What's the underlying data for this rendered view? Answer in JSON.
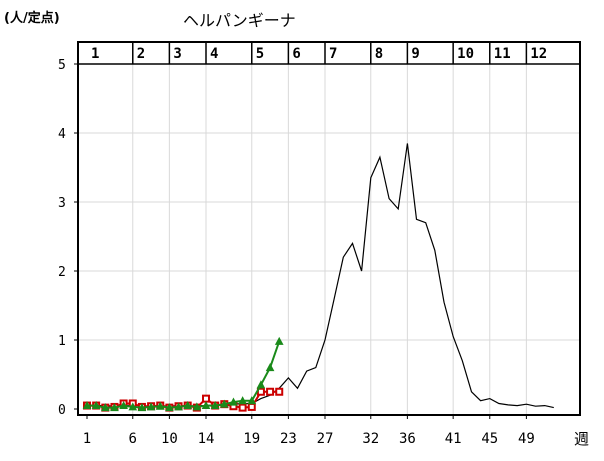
{
  "chart_data": {
    "type": "line",
    "title": "ヘルパンギーナ",
    "ylabel": "(人/定点)",
    "xlabel": "週",
    "ylim": [
      0,
      5
    ],
    "xlim": [
      1,
      53
    ],
    "yticks": [
      0,
      1,
      2,
      3,
      4,
      5
    ],
    "xticks": [
      1,
      6,
      10,
      14,
      19,
      23,
      27,
      32,
      36,
      41,
      45,
      49
    ],
    "month_labels": [
      "1",
      "2",
      "3",
      "4",
      "5",
      "6",
      "7",
      "8",
      "9",
      "10",
      "11",
      "12"
    ],
    "month_start_weeks": [
      1,
      6,
      10,
      14,
      19,
      23,
      27,
      32,
      36,
      41,
      45,
      49
    ],
    "grid": true,
    "series": [
      {
        "color": "#000000",
        "marker": "none",
        "x": [
          1,
          2,
          3,
          4,
          5,
          6,
          7,
          8,
          9,
          10,
          11,
          12,
          13,
          14,
          15,
          16,
          17,
          18,
          19,
          20,
          21,
          22,
          23,
          24,
          25,
          26,
          27,
          28,
          29,
          30,
          31,
          32,
          33,
          34,
          35,
          36,
          37,
          38,
          39,
          40,
          41,
          42,
          43,
          44,
          45,
          46,
          47,
          48,
          49,
          50,
          51,
          52
        ],
        "y": [
          0.05,
          0.05,
          0.05,
          0.04,
          0.04,
          0.06,
          0.05,
          0.04,
          0.05,
          0.04,
          0.05,
          0.04,
          0.05,
          0.05,
          0.06,
          0.05,
          0.07,
          0.08,
          0.08,
          0.15,
          0.2,
          0.3,
          0.45,
          0.3,
          0.55,
          0.6,
          1.0,
          1.6,
          2.2,
          2.4,
          2.0,
          3.35,
          3.65,
          3.05,
          2.9,
          3.85,
          2.75,
          2.7,
          2.3,
          1.55,
          1.05,
          0.7,
          0.25,
          0.12,
          0.15,
          0.08,
          0.06,
          0.05,
          0.07,
          0.04,
          0.05,
          0.02
        ]
      },
      {
        "color": "#cc0000",
        "marker": "square",
        "x": [
          1,
          2,
          3,
          4,
          5,
          6,
          7,
          8,
          9,
          10,
          11,
          12,
          13,
          14,
          15,
          16,
          17,
          18,
          19,
          20,
          21,
          22
        ],
        "y": [
          0.05,
          0.05,
          0.02,
          0.03,
          0.08,
          0.08,
          0.03,
          0.04,
          0.05,
          0.02,
          0.04,
          0.05,
          0.02,
          0.15,
          0.05,
          0.07,
          0.04,
          0.02,
          0.03,
          0.25,
          0.25,
          0.25
        ]
      },
      {
        "color": "#1a8a1a",
        "marker": "triangle",
        "x": [
          1,
          2,
          3,
          4,
          5,
          6,
          7,
          8,
          9,
          10,
          11,
          12,
          13,
          14,
          15,
          16,
          17,
          18,
          19,
          20,
          21,
          22
        ],
        "y": [
          0.05,
          0.05,
          0.02,
          0.02,
          0.05,
          0.03,
          0.02,
          0.03,
          0.04,
          0.02,
          0.03,
          0.05,
          0.03,
          0.05,
          0.05,
          0.07,
          0.1,
          0.12,
          0.12,
          0.35,
          0.6,
          0.98
        ]
      }
    ]
  }
}
